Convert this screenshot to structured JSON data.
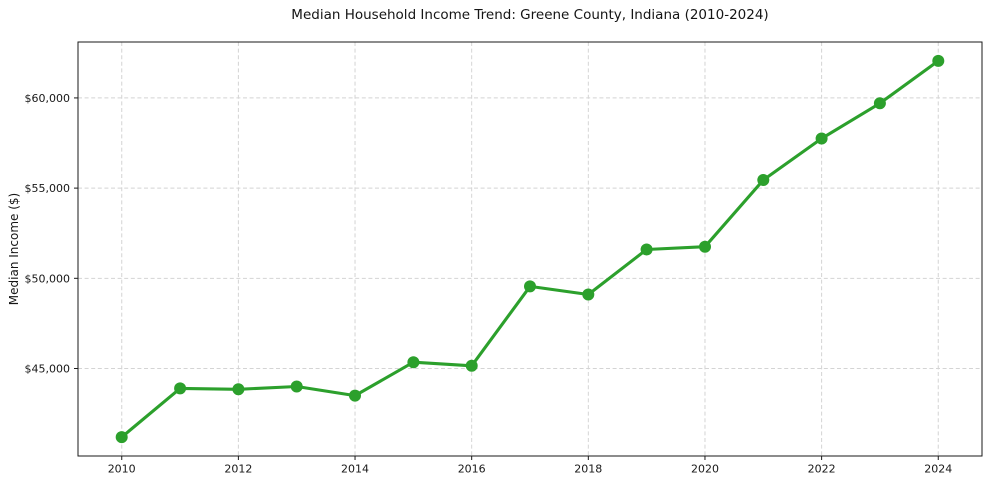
{
  "chart_data": {
    "type": "line",
    "title": "Median Household Income Trend: Greene County, Indiana (2010-2024)",
    "xlabel": "",
    "ylabel": "Median Income ($)",
    "x": [
      2010,
      2011,
      2012,
      2013,
      2014,
      2015,
      2016,
      2017,
      2018,
      2019,
      2020,
      2021,
      2022,
      2023,
      2024
    ],
    "values": [
      41200,
      43900,
      43850,
      44000,
      43500,
      45350,
      45150,
      49550,
      49100,
      51600,
      51750,
      55450,
      57750,
      59700,
      62050
    ],
    "xticks": {
      "values": [
        2010,
        2012,
        2014,
        2016,
        2018,
        2020,
        2022,
        2024
      ],
      "labels": [
        "2010",
        "2012",
        "2014",
        "2016",
        "2018",
        "2020",
        "2022",
        "2024"
      ]
    },
    "yticks": {
      "values": [
        45000,
        50000,
        55000,
        60000
      ],
      "labels": [
        "$45,000",
        "$50,000",
        "$55,000",
        "$60,000"
      ]
    },
    "xlim": [
      2009.25,
      2024.75
    ],
    "ylim": [
      40150,
      63100
    ],
    "grid": true,
    "legend": "none",
    "colors": {
      "line": "#2ca02c",
      "marker": "#2ca02c",
      "grid": "#d4d4d4",
      "spine": "#1a1a1a",
      "background": "#ffffff"
    }
  }
}
